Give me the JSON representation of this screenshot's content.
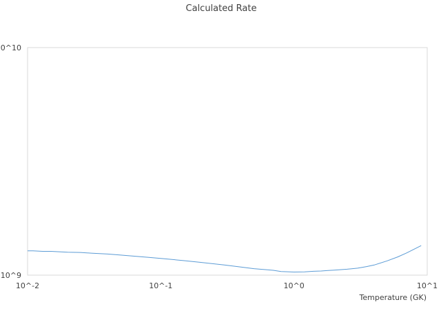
{
  "chart_data": {
    "type": "line",
    "title": "Calculated Rate",
    "xlabel": "Temperature (GK)",
    "ylabel": "",
    "x_scale": "log",
    "y_scale": "log",
    "xlim": [
      0.01,
      10
    ],
    "ylim": [
      1000000000,
      10000000000
    ],
    "x_tick_values": [
      0.01,
      0.1,
      1,
      10
    ],
    "x_tick_labels": [
      "10^-2",
      "10^-1",
      "10^0",
      "10^1"
    ],
    "y_tick_values": [
      1000000000,
      10000000000
    ],
    "y_tick_labels": [
      "10^9",
      "10^10"
    ],
    "grid": false,
    "legend": "none",
    "series_color": "#5b9bd5",
    "x": [
      0.01,
      0.011,
      0.013,
      0.015,
      0.02,
      0.025,
      0.03,
      0.04,
      0.05,
      0.06,
      0.08,
      0.1,
      0.15,
      0.2,
      0.3,
      0.4,
      0.5,
      0.6,
      0.7,
      0.8,
      0.9,
      1.0,
      1.2,
      1.4,
      1.6,
      1.8,
      2.0,
      2.5,
      3.0,
      3.5,
      4.0,
      5.0,
      6.0,
      7.0,
      8.0,
      9.0
    ],
    "y": [
      1278000000.0,
      1278000000.0,
      1272000000.0,
      1272000000.0,
      1262000000.0,
      1258000000.0,
      1249000000.0,
      1238000000.0,
      1225000000.0,
      1215000000.0,
      1198000000.0,
      1185000000.0,
      1158000000.0,
      1138000000.0,
      1108000000.0,
      1085000000.0,
      1068000000.0,
      1058000000.0,
      1050000000.0,
      1038000000.0,
      1035000000.0,
      1032000000.0,
      1034000000.0,
      1040000000.0,
      1043000000.0,
      1048000000.0,
      1052000000.0,
      1062000000.0,
      1073000000.0,
      1090000000.0,
      1108000000.0,
      1155000000.0,
      1202000000.0,
      1252000000.0,
      1302000000.0,
      1348000000.0
    ]
  }
}
